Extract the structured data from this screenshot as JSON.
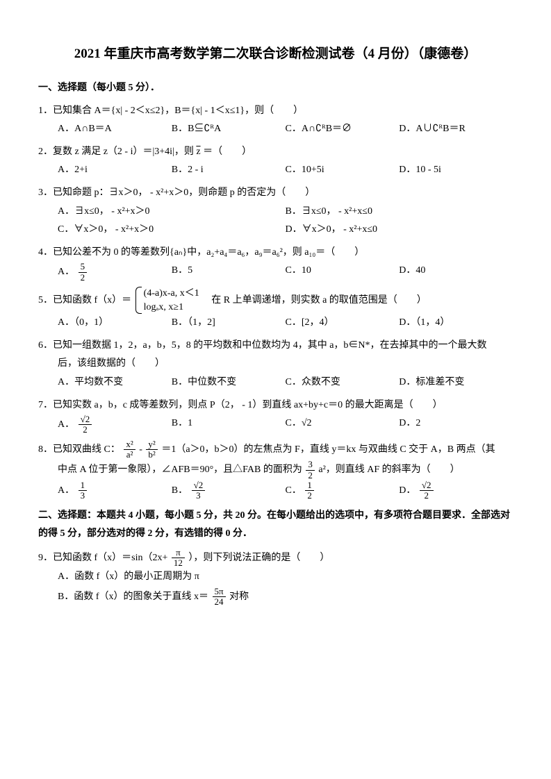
{
  "title": "2021 年重庆市高考数学第二次联合诊断检测试卷（4 月份）（康德卷）",
  "section1": {
    "header": "一、选择题（每小题 5 分）．",
    "q1": {
      "text": "1．已知集合 A＝{x| - 2＜x≤2}，B＝{x| - 1＜x≤1}，则（　　）",
      "optA": "A．A∩B＝A",
      "optB": "B．B⊆∁ᴿA",
      "optC": "C．A∩∁ᴿB＝∅",
      "optD": "D．A∪∁ᴿB＝R"
    },
    "q2": {
      "text_pre": "2．复数 z 满足 z（2 - i）＝|3+4i|，则",
      "text_post": "＝（　　）",
      "zbar": "z",
      "optA": "A．2+i",
      "optB": "B．2 - i",
      "optC": "C．10+5i",
      "optD": "D．10 - 5i"
    },
    "q3": {
      "text": "3．已知命题 p：∃x＞0， - x²+x＞0，则命题 p 的否定为（　　）",
      "optA": "A．∃x≤0， - x²+x＞0",
      "optB": "B．∃x≤0， - x²+x≤0",
      "optC": "C．∀x＞0， - x²+x＞0",
      "optD": "D．∀x＞0， - x²+x≤0"
    },
    "q4": {
      "text": "4．已知公差不为 0 的等差数列{aₙ}中，a₂+a₄＝a₆，a₉＝a₆²，则 a₁₀＝（　　）",
      "optA_pre": "A．",
      "optA_num": "5",
      "optA_den": "2",
      "optB": "B．5",
      "optC": "C．10",
      "optD": "D．40"
    },
    "q5": {
      "text_pre": "5．已知函数 f（x）＝",
      "piece1": "(4-a)x-a,  x＜1",
      "piece2": "logₐx,  x≥1",
      "text_post": "　在 R 上单调递增，则实数 a 的取值范围是（　　）",
      "optA": "A．（0，1）",
      "optB": "B．（1，2]",
      "optC": "C．[2，4）",
      "optD": "D．（1，4）"
    },
    "q6": {
      "line1": "6．已知一组数据 1，2，a，b，5，8 的平均数和中位数均为 4，其中 a，b∈N*，在去掉其中的一个最大数",
      "line2": "后，该组数据的（　　）",
      "optA": "A．平均数不变",
      "optB": "B．中位数不变",
      "optC": "C．众数不变",
      "optD": "D．标准差不变"
    },
    "q7": {
      "text": "7．已知实数 a，b，c 成等差数列，则点 P（2， - 1）到直线 ax+by+c＝0 的最大距离是（　　）",
      "optA_pre": "A．",
      "optA_num": "√2",
      "optA_den": "2",
      "optB": "B．1",
      "optC": "C．√2",
      "optD": "D．2"
    },
    "q8": {
      "line1_pre": "8．已知双曲线 C：",
      "f1_num": "x²",
      "f1_den": "a²",
      "minus": "-",
      "f2_num": "y²",
      "f2_den": "b²",
      "line1_post": "＝1（a＞0，b＞0）的左焦点为 F，直线 y＝kx 与双曲线 C 交于 A，B 两点（其",
      "line2_pre": "中点 A 位于第一象限），∠AFB＝90°，且△FAB 的面积为",
      "area_num": "3",
      "area_den": "2",
      "line2_post": "a²，则直线 AF 的斜率为（　　）",
      "optA_pre": "A．",
      "optA_num": "1",
      "optA_den": "3",
      "optB_pre": "B．",
      "optB_num": "√2",
      "optB_den": "3",
      "optC_pre": "C．",
      "optC_num": "1",
      "optC_den": "2",
      "optD_pre": "D．",
      "optD_num": "√2",
      "optD_den": "2"
    }
  },
  "section2": {
    "header": "二、选择题：本题共 4 小题，每小题 5 分，共 20 分。在每小题给出的选项中，有多项符合题目要求．全部选对的得 5 分，部分选对的得 2 分，有选错的得 0 分．",
    "q9": {
      "text_pre": "9．已知函数 f（x）＝sin（2x+",
      "arg_num": "π",
      "arg_den": "12",
      "text_post": "），则下列说法正确的是（　　）",
      "optA": "A．函数 f（x）的最小正周期为 π",
      "optB_pre": "B．函数 f（x）的图象关于直线 x＝",
      "optB_num": "5π",
      "optB_den": "24",
      "optB_post": " 对称"
    }
  }
}
